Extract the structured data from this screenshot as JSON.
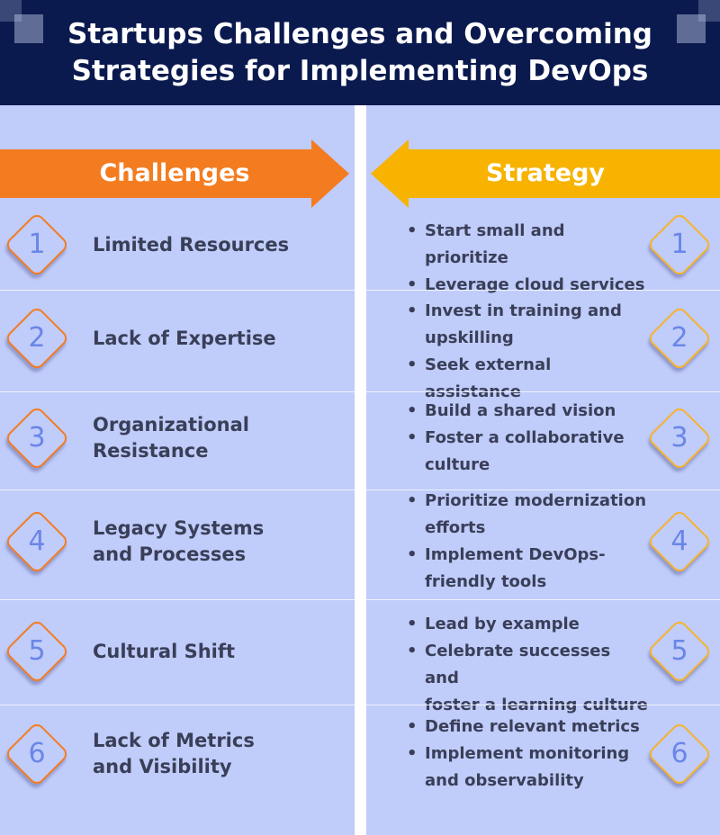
{
  "title": "Startups Challenges and Overcoming\nStrategies for Implementing DevOps",
  "challenges_label": "Challenges",
  "strategy_label": "Strategy",
  "colors": {
    "header_bg": "#0a1a4e",
    "panel_bg": "#c0ccfa",
    "challenge_accent": "#f47c20",
    "strategy_accent": "#f7b32b",
    "number_color": "#6a86e6"
  },
  "rows": [
    {
      "number": "1",
      "challenge": "Limited Resources",
      "strategies": [
        "Start small and prioritize",
        "Leverage cloud services"
      ]
    },
    {
      "number": "2",
      "challenge": "Lack of Expertise",
      "strategies": [
        "Invest in training and upskilling",
        "Seek external assistance"
      ]
    },
    {
      "number": "3",
      "challenge": "Organizational Resistance",
      "strategies": [
        "Build a shared vision",
        "Foster a collaborative culture"
      ]
    },
    {
      "number": "4",
      "challenge": "Legacy Systems and Processes",
      "strategies": [
        "Prioritize modernization efforts",
        "Implement DevOps-friendly tools"
      ]
    },
    {
      "number": "5",
      "challenge": "Cultural Shift",
      "strategies": [
        "Lead by example",
        "Celebrate successes and foster a learning culture"
      ]
    },
    {
      "number": "6",
      "challenge": "Lack of Metrics and Visibility",
      "strategies": [
        "Define relevant metrics",
        "Implement monitoring and observability"
      ]
    }
  ]
}
